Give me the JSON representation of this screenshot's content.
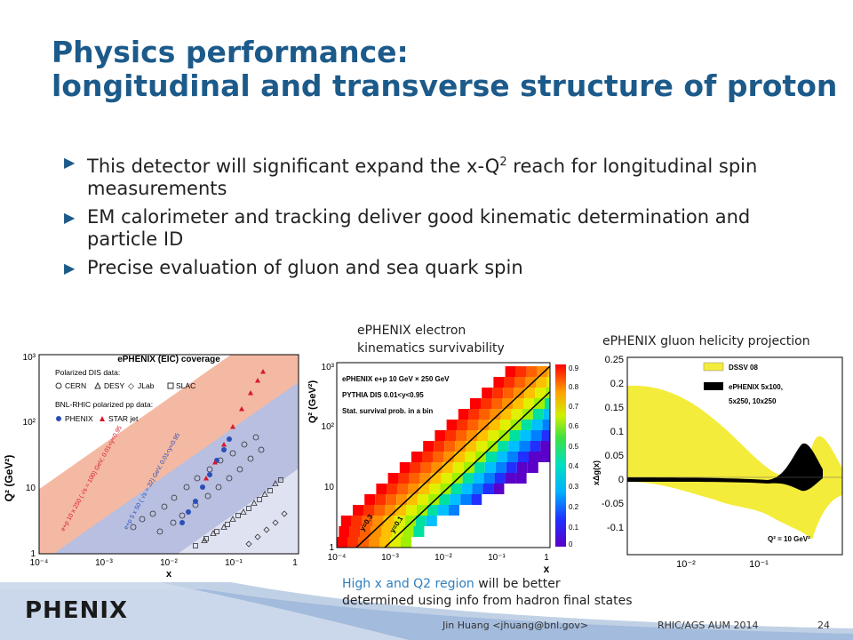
{
  "slide": {
    "title_line1": "Physics performance:",
    "title_line2": "longitudinal and transverse structure of proton",
    "bullets": [
      {
        "pre": "This detector will significant expand the x-Q",
        "sup": "2",
        "post": " reach for longitudinal spin measurements"
      },
      {
        "pre": "EM calorimeter and tracking deliver good kinematic determination and particle ID",
        "sup": "",
        "post": ""
      },
      {
        "pre": "Precise evaluation of gluon and sea quark spin",
        "sup": "",
        "post": ""
      }
    ],
    "arrow_glyph": "▶"
  },
  "fig_middle_caption_line1": "ePHENIX electron",
  "fig_middle_caption_line2": "kinematics survivability",
  "fig_right_caption": "ePHENIX gluon helicity projection",
  "bottom_note": {
    "highlight": "High x and Q2 region",
    "rest_line1": " will be better",
    "line2": "determined using info from hadron final states"
  },
  "footer": {
    "author": "Jin Huang <jhuang@bnl.gov>",
    "event": "RHIC/AGS AUM 2014",
    "page": "24"
  },
  "logo_text": "PHENIX",
  "fig_left": {
    "title": "ePHENIX (EIC) coverage",
    "legend_polarized_dis": "Polarized DIS data:",
    "legend_dis": [
      "CERN",
      "DESY",
      "JLab",
      "SLAC"
    ],
    "legend_rhic": "BNL-RHIC polarized pp data:",
    "legend_rhic_items": [
      "PHENIX",
      "STAR jet"
    ],
    "band1_label": "e+p 10 x 250 ( √s = 100) GeV, 0.01<y<0.95",
    "band2_label": "e+p 5 x 50 ( √s = 32) GeV, 0.01<y<0.95",
    "xlabel": "x",
    "ylabel": "Q² (GeV²)",
    "x_ticks": [
      "10⁻⁴",
      "10⁻³",
      "10⁻²",
      "10⁻¹",
      "1"
    ],
    "y_ticks": [
      "1",
      "10",
      "10²",
      "10³"
    ],
    "colors": {
      "band_outer": "#f4b9a3",
      "band_inner": "#b8bfe0",
      "phenix": "#2a4fb5",
      "star": "#d8182a"
    }
  },
  "fig_middle": {
    "legend": [
      "ePHENIX e+p 10 GeV × 250 GeV",
      "PYTHIA DIS 0.01<y<0.95",
      "Stat. survival prob. in a bin"
    ],
    "xlabel": "x",
    "ylabel": "Q² (GeV²)",
    "x_ticks": [
      "10⁻⁴",
      "10⁻³",
      "10⁻²",
      "10⁻¹",
      "1"
    ],
    "y_ticks": [
      "1",
      "10",
      "10²",
      "10³"
    ],
    "z_ticks": [
      "0",
      "0.1",
      "0.2",
      "0.3",
      "0.4",
      "0.5",
      "0.6",
      "0.7",
      "0.8",
      "0.9"
    ],
    "line_labels": [
      "y=0.3",
      "y=0.1"
    ]
  },
  "fig_right": {
    "legend": [
      "DSSV 08",
      "ePHENIX 5x100,",
      "5x250, 10x250"
    ],
    "ylabel": "xΔg(x)",
    "annotation": "Q² = 10 GeV²",
    "x_ticks": [
      "10⁻²",
      "10⁻¹"
    ],
    "y_ticks": [
      "0.25",
      "0.2",
      "0.15",
      "0.1",
      "0.05",
      "0",
      "-0.05",
      "-0.1"
    ],
    "colors": {
      "band": "#f4ec3a",
      "projection": "#000000"
    }
  }
}
